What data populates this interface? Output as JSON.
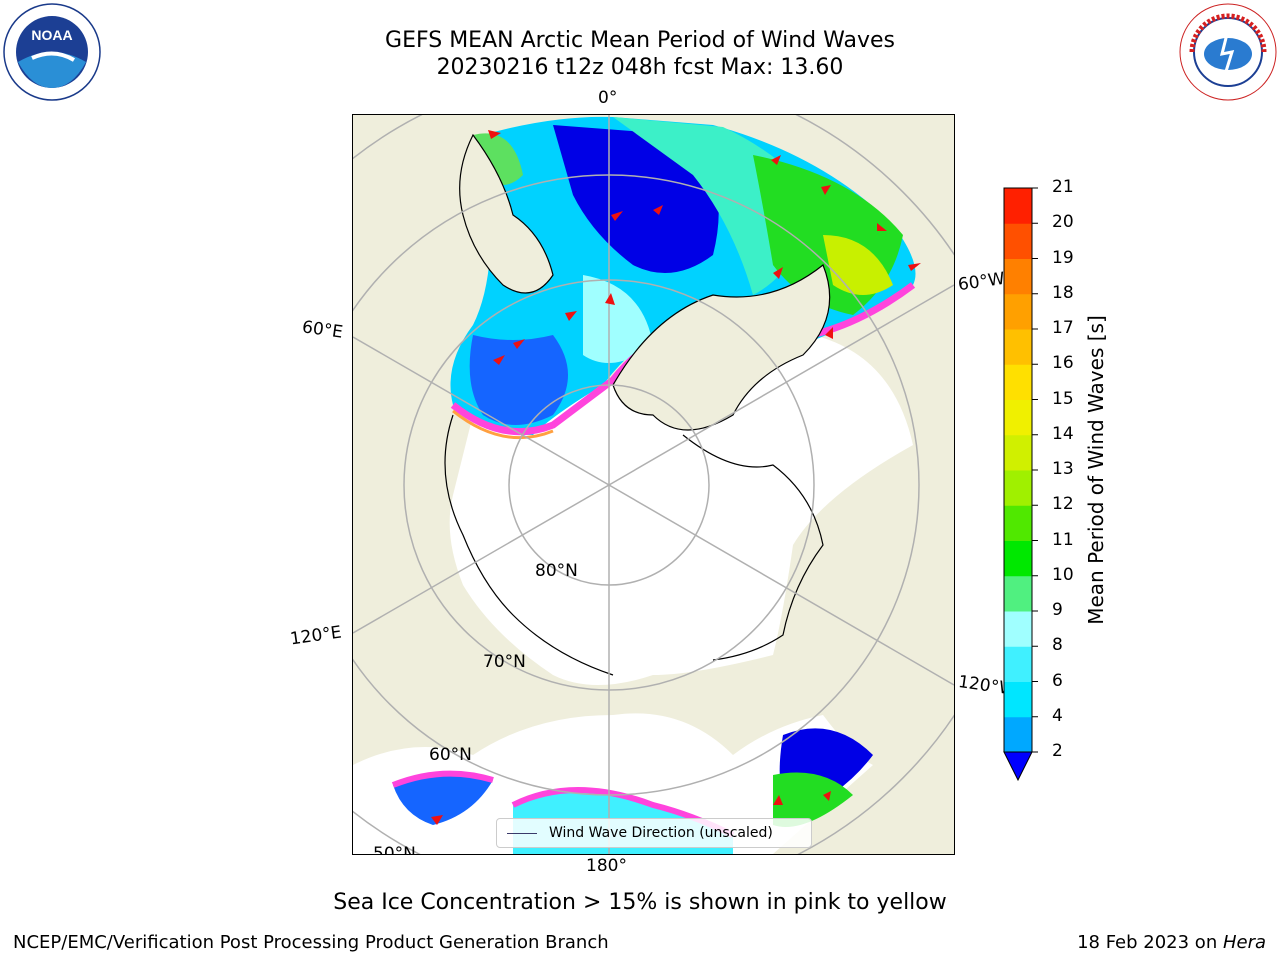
{
  "title": {
    "line1": "GEFS MEAN Arctic Mean Period of Wind Waves",
    "line2": "20230216 t12z 048h fcst   Max: 13.60"
  },
  "map": {
    "longitude_labels": {
      "top": "0°",
      "left_upper": "60°E",
      "left_lower": "120°E",
      "right_upper": "60°W",
      "right_lower": "120°W",
      "bottom": "180°"
    },
    "latitude_labels": {
      "lat80": "80°N",
      "lat70": "70°N",
      "lat60": "60°N",
      "lat50": "50°N"
    },
    "legend_label": "Wind Wave Direction (unscaled)"
  },
  "colorbar": {
    "label": "Mean Period of Wind Waves [s]",
    "ticks": [
      "2",
      "4",
      "6",
      "8",
      "9",
      "10",
      "11",
      "12",
      "13",
      "14",
      "15",
      "16",
      "17",
      "18",
      "19",
      "20",
      "21"
    ],
    "colors": [
      "#0050ff",
      "#00a8ff",
      "#00e6ff",
      "#40f0ff",
      "#a0ffff",
      "#50f080",
      "#00e800",
      "#50e800",
      "#a0f000",
      "#d0f000",
      "#f0f000",
      "#ffe000",
      "#ffc000",
      "#ffa000",
      "#ff8000",
      "#ff5000",
      "#ff2000",
      "#ff0000"
    ],
    "extend_color": "#0000ff"
  },
  "footer": {
    "note": "Sea Ice Concentration > 15% is shown in pink to yellow",
    "left": "NCEP/EMC/Verification Post Processing Product Generation Branch",
    "right_prefix": "18 Feb 2023 on ",
    "right_host": "Hera"
  },
  "logos": {
    "left": "NOAA",
    "right": "NATIONAL WEATHER SERVICE"
  }
}
